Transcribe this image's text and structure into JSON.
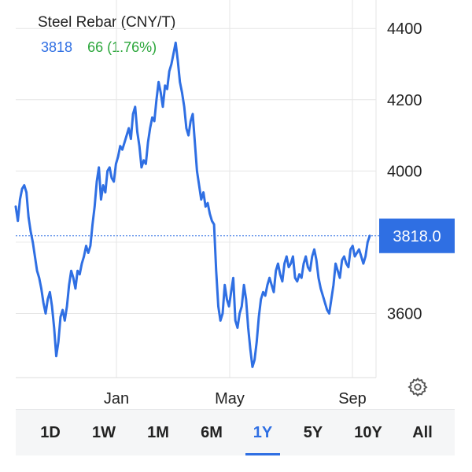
{
  "header": {
    "title": "Steel Rebar (CNY/T)",
    "price": "3818",
    "change": "66 (1.76%)"
  },
  "current_price_label": "3818.0",
  "colors": {
    "line": "#2f6fe3",
    "up": "#2aa63a",
    "badge": "#2f6fe3",
    "grid": "#e6e6e6"
  },
  "ranges": {
    "items": [
      "1D",
      "1W",
      "1M",
      "6M",
      "1Y",
      "5Y",
      "10Y",
      "All"
    ],
    "active": "1Y"
  },
  "settings_icon": "gear-icon",
  "chart_data": {
    "type": "line",
    "title": "Steel Rebar (CNY/T)",
    "y_ticks": [
      "4400",
      "4200",
      "4000",
      "3600"
    ],
    "x_ticks": [
      "Jan",
      "May",
      "Sep"
    ],
    "ylim": [
      3420,
      4480
    ],
    "grid": true,
    "series": [
      {
        "name": "Steel Rebar",
        "values": [
          3900,
          3860,
          3920,
          3950,
          3960,
          3940,
          3870,
          3830,
          3800,
          3760,
          3720,
          3700,
          3670,
          3630,
          3600,
          3640,
          3660,
          3620,
          3560,
          3480,
          3520,
          3590,
          3610,
          3580,
          3620,
          3680,
          3720,
          3700,
          3670,
          3720,
          3710,
          3740,
          3760,
          3790,
          3770,
          3790,
          3850,
          3900,
          3970,
          4010,
          3920,
          3960,
          3940,
          4000,
          4010,
          3980,
          3970,
          4020,
          4040,
          4070,
          4060,
          4080,
          4100,
          4120,
          4090,
          4160,
          4180,
          4110,
          4070,
          4010,
          4030,
          4020,
          4080,
          4120,
          4150,
          4140,
          4200,
          4250,
          4220,
          4180,
          4240,
          4230,
          4280,
          4300,
          4330,
          4360,
          4310,
          4250,
          4220,
          4180,
          4120,
          4100,
          4140,
          4160,
          4080,
          4000,
          3960,
          3920,
          3940,
          3900,
          3910,
          3880,
          3860,
          3850,
          3720,
          3620,
          3580,
          3600,
          3680,
          3640,
          3620,
          3660,
          3700,
          3580,
          3560,
          3600,
          3620,
          3680,
          3640,
          3560,
          3500,
          3450,
          3470,
          3520,
          3590,
          3640,
          3660,
          3650,
          3680,
          3700,
          3680,
          3660,
          3720,
          3740,
          3710,
          3690,
          3740,
          3760,
          3730,
          3740,
          3760,
          3700,
          3690,
          3710,
          3700,
          3740,
          3760,
          3730,
          3720,
          3760,
          3780,
          3750,
          3700,
          3670,
          3650,
          3630,
          3610,
          3600,
          3640,
          3680,
          3740,
          3720,
          3700,
          3750,
          3760,
          3740,
          3730,
          3780,
          3790,
          3760,
          3770,
          3780,
          3760,
          3740,
          3760,
          3800,
          3818
        ]
      }
    ]
  }
}
